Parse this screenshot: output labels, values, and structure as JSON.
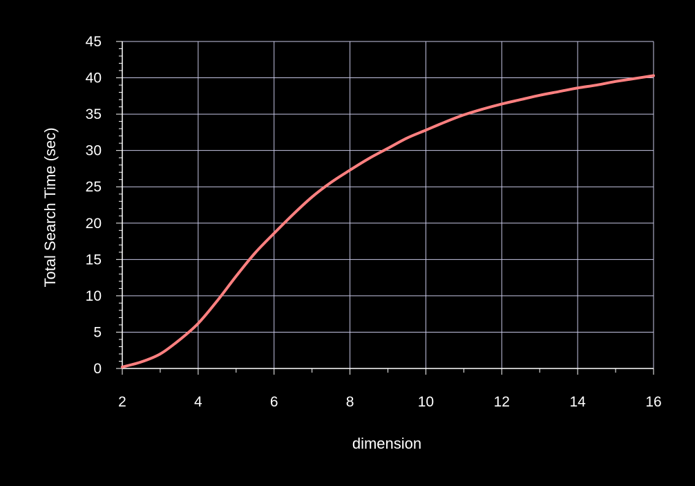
{
  "chart_data": {
    "type": "line",
    "title": "",
    "xlabel": "dimension",
    "ylabel": "Total Search Time (sec)",
    "xlim": [
      2,
      16
    ],
    "ylim": [
      0,
      45
    ],
    "xticks": [
      2,
      4,
      6,
      8,
      10,
      12,
      14,
      16
    ],
    "yticks": [
      0,
      5,
      10,
      15,
      20,
      25,
      30,
      35,
      40,
      45
    ],
    "grid": true,
    "legend": "none",
    "colors": {
      "background": "#000000",
      "grid": "#c8c8e6",
      "text": "#ffffff",
      "line": "#ff8080"
    },
    "series": [
      {
        "x": [
          2,
          2.5,
          3,
          3.5,
          4,
          4.5,
          5,
          5.5,
          6,
          6.5,
          7,
          7.5,
          8,
          8.5,
          9,
          9.5,
          10,
          10.5,
          11,
          11.5,
          12,
          12.5,
          13,
          13.5,
          14,
          14.5,
          15,
          15.5,
          16
        ],
        "values": [
          0.2,
          0.9,
          2.0,
          3.9,
          6.2,
          9.3,
          12.7,
          15.9,
          18.6,
          21.2,
          23.6,
          25.6,
          27.3,
          28.9,
          30.3,
          31.7,
          32.8,
          33.9,
          34.9,
          35.7,
          36.4,
          37.0,
          37.6,
          38.1,
          38.6,
          39.0,
          39.5,
          39.9,
          40.3
        ]
      }
    ]
  }
}
